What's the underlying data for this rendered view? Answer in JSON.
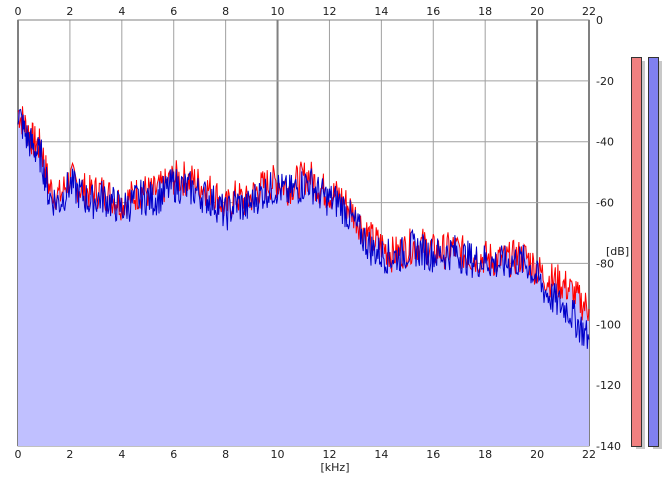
{
  "spectrum": {
    "x_unit_label": "[kHz]",
    "y_unit_label": "[dB]",
    "x_ticks": [
      "0",
      "2",
      "4",
      "6",
      "8",
      "10",
      "12",
      "14",
      "16",
      "18",
      "20",
      "22"
    ],
    "y_ticks": [
      "0",
      "-20",
      "-40",
      "-60",
      "-80",
      "-100",
      "-120",
      "-140"
    ],
    "colors": {
      "fill": "#c0c0ff",
      "left_channel": "#ff0000",
      "right_channel": "#0000c8",
      "grid": "#a0a0a0",
      "major_grid": "#808080",
      "meter_left": "#f08080",
      "meter_right": "#8080f0"
    }
  },
  "chart_data": {
    "type": "line",
    "x_unit": "[kHz]",
    "y_unit": "[dB]",
    "xlim": [
      0,
      22
    ],
    "ylim": [
      -140,
      0
    ],
    "grid": true,
    "series": [
      {
        "color": "#ff0000",
        "x": [
          0,
          0.3,
          0.6,
          0.9,
          1.2,
          1.6,
          2,
          2.4,
          2.8,
          3.2,
          3.6,
          4,
          4.4,
          4.8,
          5.2,
          5.6,
          6,
          6.4,
          6.8,
          7.2,
          7.6,
          8,
          8.4,
          8.8,
          9.2,
          9.6,
          10,
          10.4,
          10.8,
          11.2,
          11.6,
          12,
          12.4,
          12.8,
          13.2,
          13.6,
          14,
          14.4,
          14.8,
          15.2,
          15.6,
          16,
          16.4,
          16.8,
          17.2,
          17.6,
          18,
          18.4,
          18.8,
          19.2,
          19.6,
          20,
          20.4,
          20.8,
          21.2,
          21.6,
          22
        ],
        "y": [
          -30,
          -35,
          -40,
          -42,
          -55,
          -58,
          -52,
          -55,
          -57,
          -56,
          -58,
          -60,
          -58,
          -56,
          -57,
          -55,
          -52,
          -52,
          -53,
          -55,
          -57,
          -62,
          -58,
          -60,
          -56,
          -54,
          -53,
          -55,
          -53,
          -51,
          -55,
          -57,
          -58,
          -62,
          -67,
          -72,
          -74,
          -77,
          -76,
          -74,
          -74,
          -76,
          -76,
          -75,
          -77,
          -78,
          -78,
          -79,
          -79,
          -78,
          -78,
          -82,
          -85,
          -86,
          -88,
          -92,
          -95
        ]
      },
      {
        "color": "#0000c8",
        "x": [
          0,
          0.3,
          0.6,
          0.9,
          1.2,
          1.6,
          2,
          2.4,
          2.8,
          3.2,
          3.6,
          4,
          4.4,
          4.8,
          5.2,
          5.6,
          6,
          6.4,
          6.8,
          7.2,
          7.6,
          8,
          8.4,
          8.8,
          9.2,
          9.6,
          10,
          10.4,
          10.8,
          11.2,
          11.6,
          12,
          12.4,
          12.8,
          13.2,
          13.6,
          14,
          14.4,
          14.8,
          15.2,
          15.6,
          16,
          16.4,
          16.8,
          17.2,
          17.6,
          18,
          18.4,
          18.8,
          19.2,
          19.6,
          20,
          20.4,
          20.8,
          21.2,
          21.6,
          22
        ],
        "y": [
          -30,
          -38,
          -42,
          -45,
          -58,
          -60,
          -54,
          -57,
          -60,
          -58,
          -60,
          -62,
          -60,
          -58,
          -59,
          -57,
          -54,
          -55,
          -56,
          -58,
          -60,
          -64,
          -60,
          -62,
          -58,
          -56,
          -55,
          -57,
          -55,
          -53,
          -57,
          -59,
          -60,
          -65,
          -70,
          -75,
          -77,
          -78,
          -77,
          -75,
          -76,
          -77,
          -77,
          -76,
          -78,
          -79,
          -79,
          -80,
          -80,
          -79,
          -80,
          -85,
          -90,
          -93,
          -95,
          -100,
          -105
        ]
      }
    ]
  },
  "meters": {
    "left_level": 1.0,
    "right_level": 1.0
  }
}
